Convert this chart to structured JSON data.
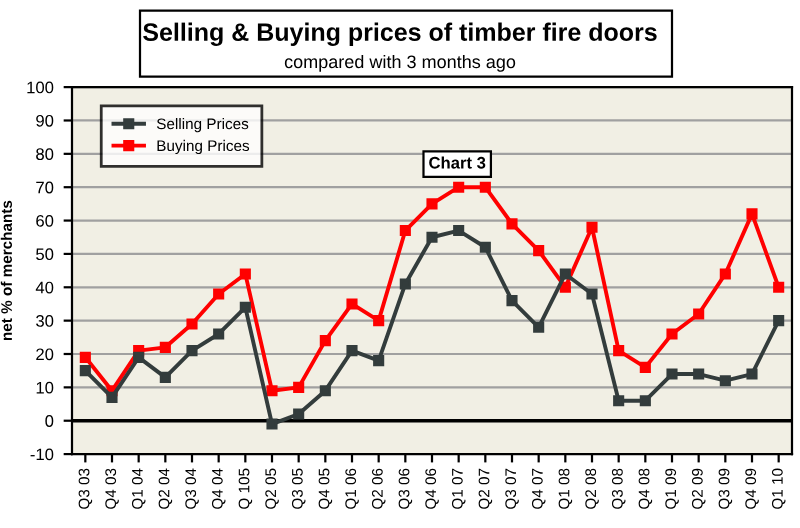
{
  "chart_data": {
    "type": "line",
    "title": "Selling & Buying prices of timber fire doors",
    "subtitle": "compared with 3 months ago",
    "ylabel": "net % of merchants",
    "categories": [
      "Q3 03",
      "Q4 03",
      "Q1 04",
      "Q2 04",
      "Q3 04",
      "Q4 04",
      "Q 105",
      "Q2 05",
      "Q3 05",
      "Q4 05",
      "Q1 06",
      "Q2 06",
      "Q3 06",
      "Q4 06",
      "Q1 07",
      "Q2 07",
      "Q3 07",
      "Q4 07",
      "Q1 08",
      "Q2 08",
      "Q3 08",
      "Q4 08",
      "Q1 09",
      "Q2 09",
      "Q3 09",
      "Q4 09",
      "Q1 10"
    ],
    "series": [
      {
        "name": "Selling Prices",
        "color": "#333c3c",
        "values": [
          15,
          7,
          19,
          13,
          21,
          26,
          34,
          -1,
          2,
          9,
          21,
          18,
          41,
          55,
          57,
          52,
          36,
          28,
          44,
          38,
          6,
          6,
          14,
          14,
          12,
          14,
          30
        ]
      },
      {
        "name": "Buying Prices",
        "color": "#ff0000",
        "values": [
          19,
          9,
          21,
          22,
          29,
          38,
          44,
          9,
          10,
          24,
          35,
          30,
          57,
          65,
          70,
          70,
          59,
          51,
          40,
          58,
          21,
          16,
          26,
          32,
          44,
          62,
          40
        ]
      }
    ],
    "ylim": [
      -10,
      100
    ],
    "yticks": [
      -10,
      0,
      10,
      20,
      30,
      40,
      50,
      60,
      70,
      80,
      90,
      100
    ],
    "grid": "y",
    "legend": "top left",
    "marker": "square",
    "line_style": "solid",
    "ref_lines": [
      {
        "axis": "y",
        "value": 0,
        "color": "#000000"
      }
    ],
    "annotations": [
      "Chart 3"
    ]
  }
}
